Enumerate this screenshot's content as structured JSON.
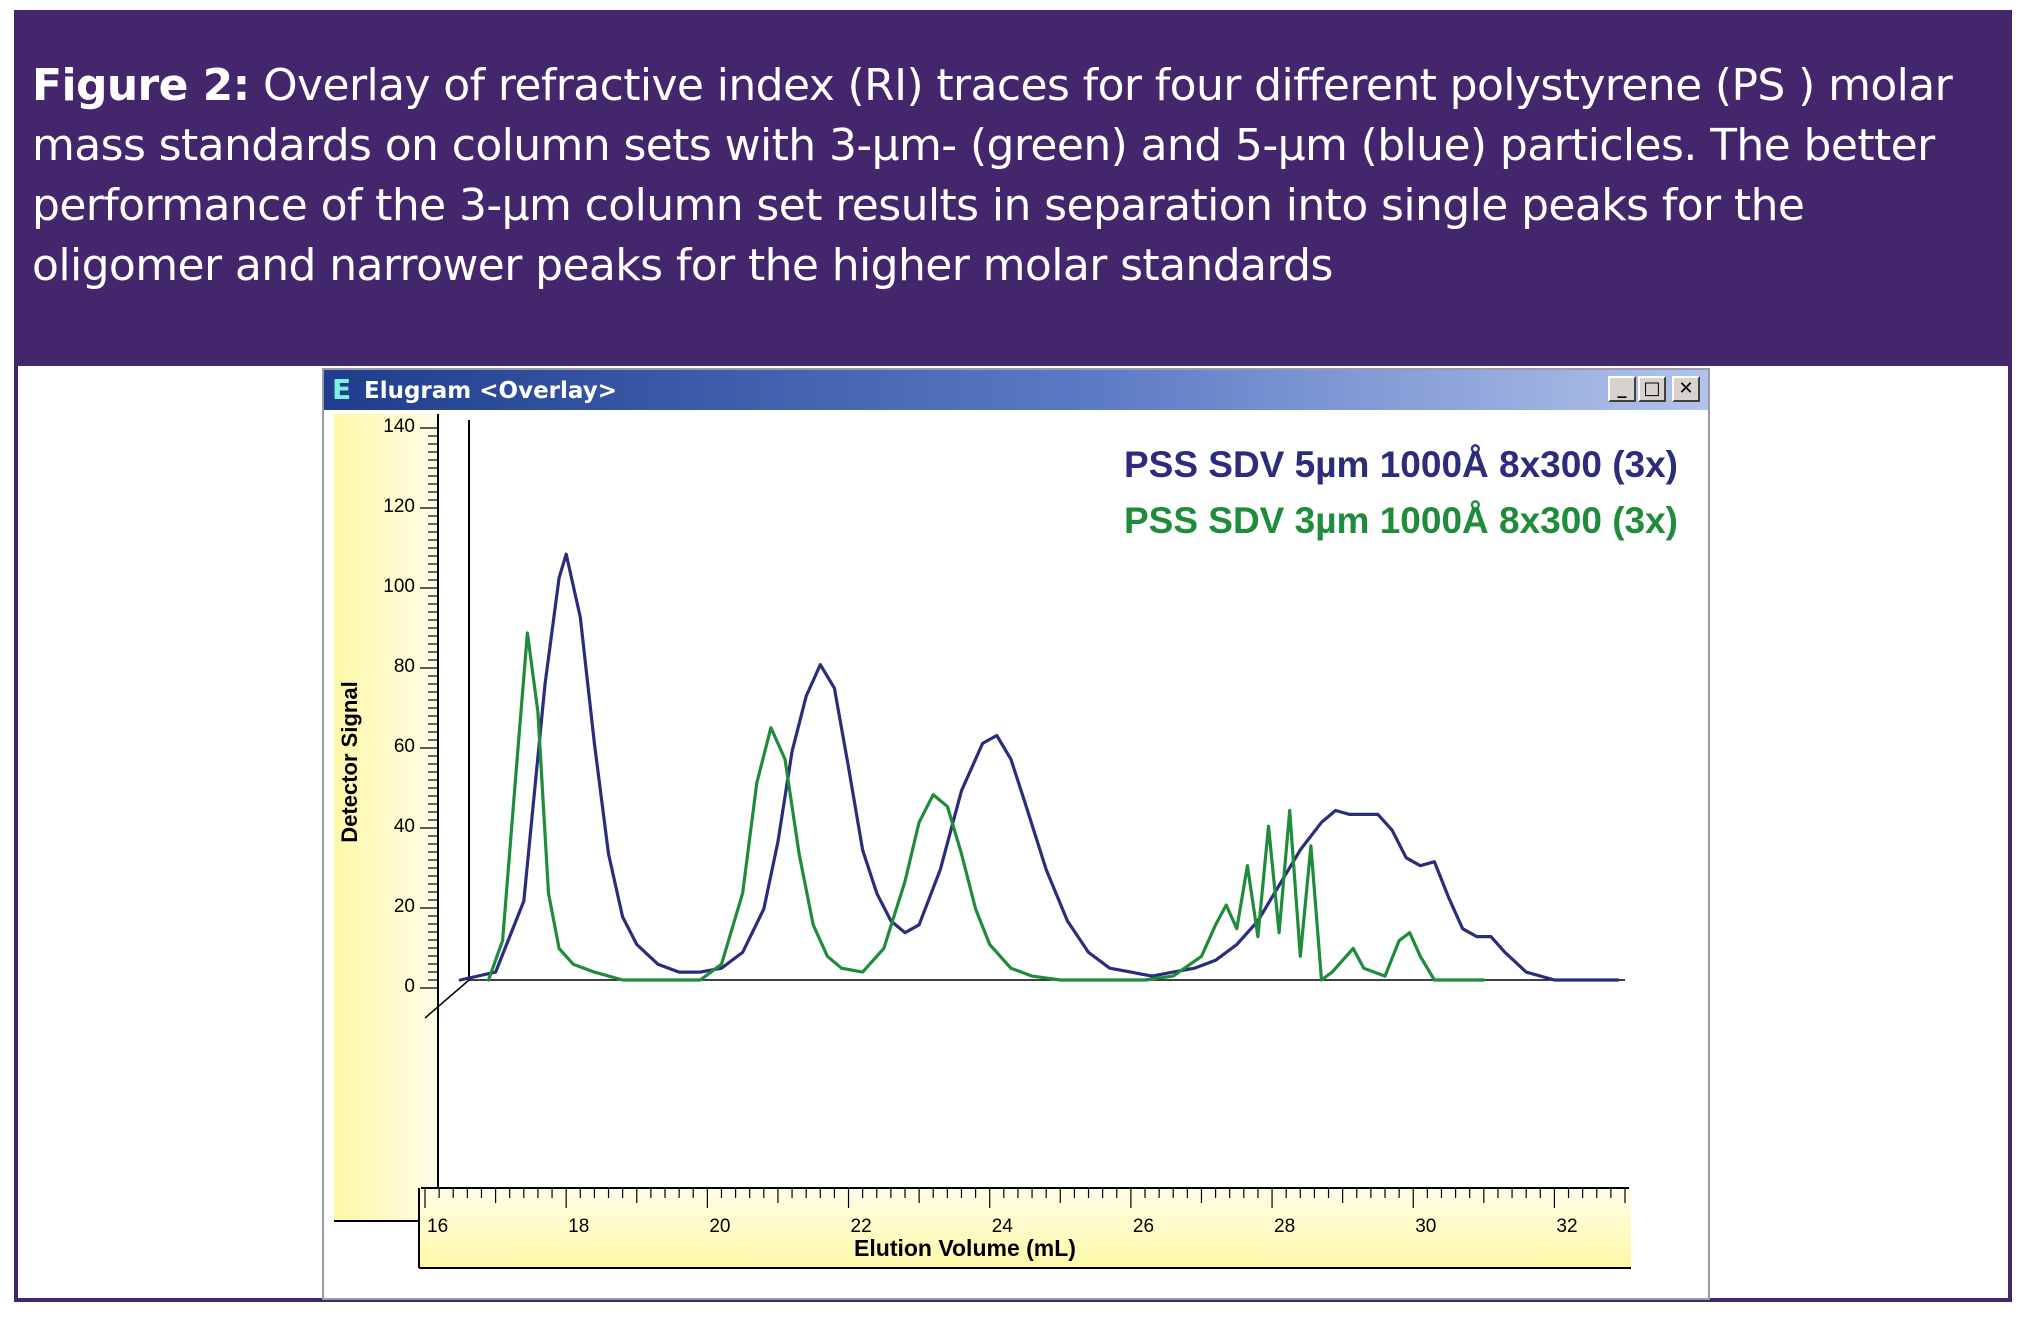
{
  "caption": {
    "label": "Figure 2:",
    "text": " Overlay of refractive index (RI) traces for four different polystyrene (PS ) molar mass standards on column sets with 3-µm- (green) and 5-µm (blue) particles. The better performance of the 3-µm column set results in separation into single peaks for the oligomer and narrower peaks for the higher molar standards"
  },
  "window": {
    "icon": "E",
    "title": "Elugram <Overlay>",
    "minimize": "_",
    "maximize": "□",
    "close": "✕"
  },
  "colors": {
    "band": "#44266d",
    "series_5um": "#2c2c7c",
    "series_3um": "#1f8c3b",
    "axis_fill": "#fff8a8"
  },
  "chart_data": {
    "type": "line",
    "xlabel": "Elution Volume (mL)",
    "ylabel": "Detector Signal",
    "xlim": [
      16,
      33
    ],
    "ylim": [
      0,
      140
    ],
    "xticks": [
      16,
      18,
      20,
      22,
      24,
      26,
      28,
      30,
      32
    ],
    "yticks": [
      0,
      20,
      40,
      60,
      80,
      100,
      120,
      140
    ],
    "grid": false,
    "legend_position": "top-right",
    "series": [
      {
        "name": "PSS SDV 5µm 1000Å 8x300 (3x)",
        "color": "#2c2c7c",
        "x": [
          16.5,
          17.0,
          17.4,
          17.7,
          17.9,
          18.0,
          18.2,
          18.4,
          18.6,
          18.8,
          19.0,
          19.3,
          19.6,
          19.9,
          20.2,
          20.5,
          20.8,
          21.0,
          21.2,
          21.4,
          21.6,
          21.8,
          22.0,
          22.2,
          22.4,
          22.6,
          22.8,
          23.0,
          23.3,
          23.6,
          23.9,
          24.1,
          24.3,
          24.5,
          24.8,
          25.1,
          25.4,
          25.7,
          26.0,
          26.3,
          26.6,
          26.9,
          27.2,
          27.5,
          27.8,
          28.1,
          28.4,
          28.7,
          28.9,
          29.1,
          29.3,
          29.5,
          29.7,
          29.9,
          30.1,
          30.3,
          30.5,
          30.7,
          30.9,
          31.1,
          31.3,
          31.6,
          32.0,
          32.4,
          32.9
        ],
        "values": [
          0,
          2,
          20,
          75,
          102,
          108,
          92,
          60,
          32,
          16,
          9,
          4,
          2,
          2,
          3,
          7,
          18,
          35,
          58,
          72,
          80,
          74,
          54,
          33,
          22,
          15,
          12,
          14,
          28,
          48,
          60,
          62,
          56,
          45,
          28,
          15,
          7,
          3,
          2,
          1,
          2,
          3,
          5,
          9,
          15,
          24,
          33,
          40,
          43,
          42,
          42,
          42,
          38,
          31,
          29,
          30,
          21,
          13,
          11,
          11,
          7,
          2,
          0,
          0,
          0
        ]
      },
      {
        "name": "PSS SDV 3µm 1000Å 8x300 (3x)",
        "color": "#1f8c3b",
        "x": [
          16.9,
          17.1,
          17.3,
          17.45,
          17.6,
          17.75,
          17.9,
          18.1,
          18.4,
          18.8,
          19.5,
          19.9,
          20.2,
          20.5,
          20.7,
          20.9,
          21.1,
          21.3,
          21.5,
          21.7,
          21.9,
          22.2,
          22.5,
          22.8,
          23.0,
          23.2,
          23.4,
          23.6,
          23.8,
          24.0,
          24.3,
          24.6,
          25.0,
          26.2,
          26.6,
          27.0,
          27.2,
          27.35,
          27.5,
          27.65,
          27.8,
          27.95,
          28.1,
          28.25,
          28.4,
          28.55,
          28.7,
          28.85,
          29.0,
          29.15,
          29.3,
          29.6,
          29.8,
          29.95,
          30.1,
          30.3,
          31.0
        ],
        "values": [
          0,
          10,
          55,
          88,
          68,
          22,
          8,
          4,
          2,
          0,
          0,
          0,
          4,
          22,
          50,
          64,
          56,
          32,
          14,
          6,
          3,
          2,
          8,
          25,
          40,
          47,
          44,
          32,
          18,
          9,
          3,
          1,
          0,
          0,
          1,
          6,
          14,
          19,
          13,
          29,
          11,
          39,
          12,
          43,
          6,
          34,
          0,
          2,
          5,
          8,
          3,
          1,
          10,
          12,
          6,
          0,
          0
        ]
      }
    ]
  }
}
